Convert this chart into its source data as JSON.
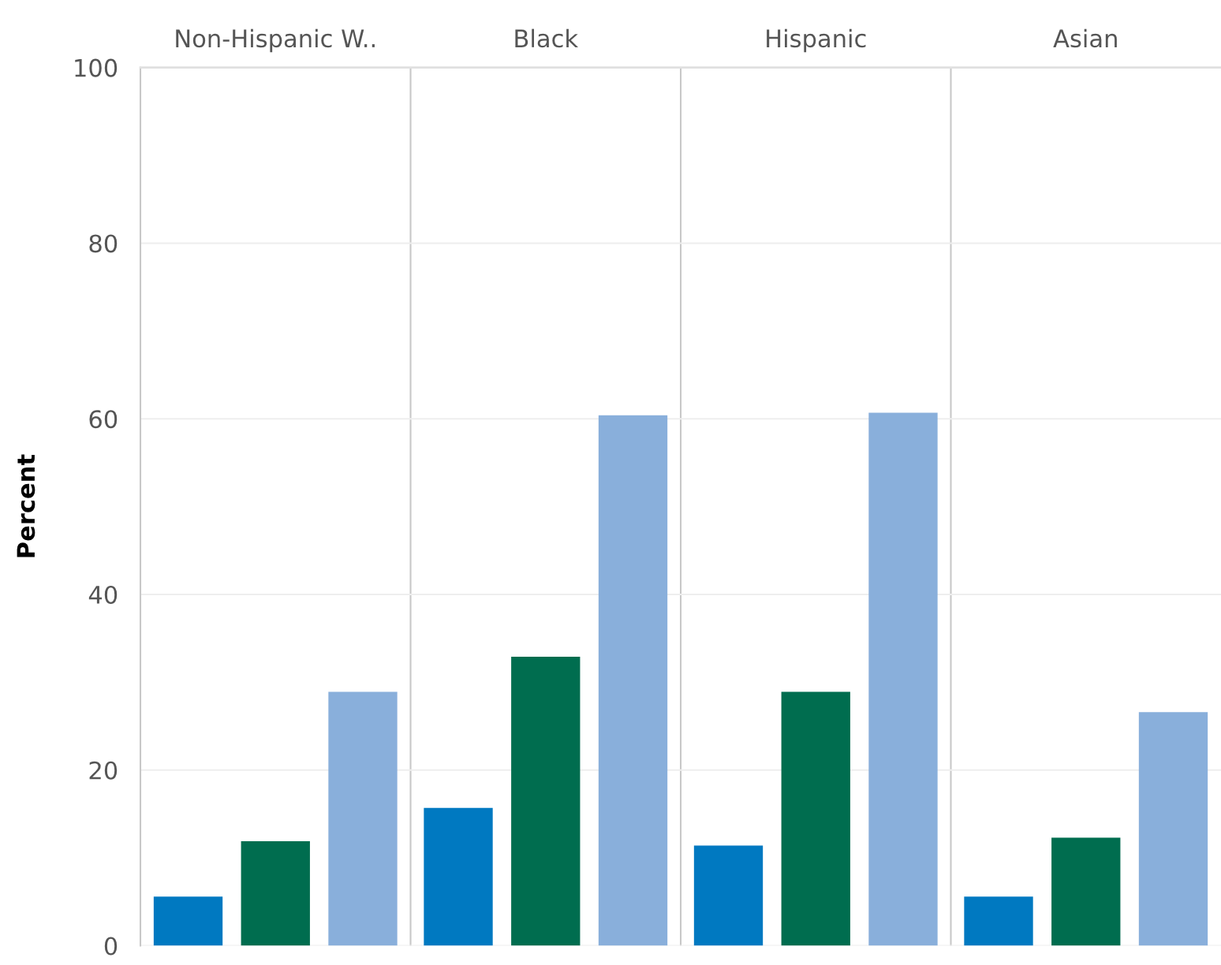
{
  "chart_data": {
    "type": "bar",
    "ylabel": "Percent",
    "categories": [
      "Non-Hispanic W..",
      "Black",
      "Hispanic",
      "Asian"
    ],
    "series": [
      {
        "color": "#0079c1",
        "values": [
          5.6,
          15.7,
          11.4,
          5.6
        ]
      },
      {
        "color": "#006d4f",
        "values": [
          11.9,
          32.9,
          28.9,
          12.3
        ]
      },
      {
        "color": "#89afdb",
        "values": [
          28.9,
          60.4,
          60.7,
          26.6
        ]
      }
    ],
    "ylim": [
      0,
      100
    ],
    "yticks": [
      0,
      20,
      40,
      60,
      80,
      100
    ],
    "grid": "y"
  }
}
